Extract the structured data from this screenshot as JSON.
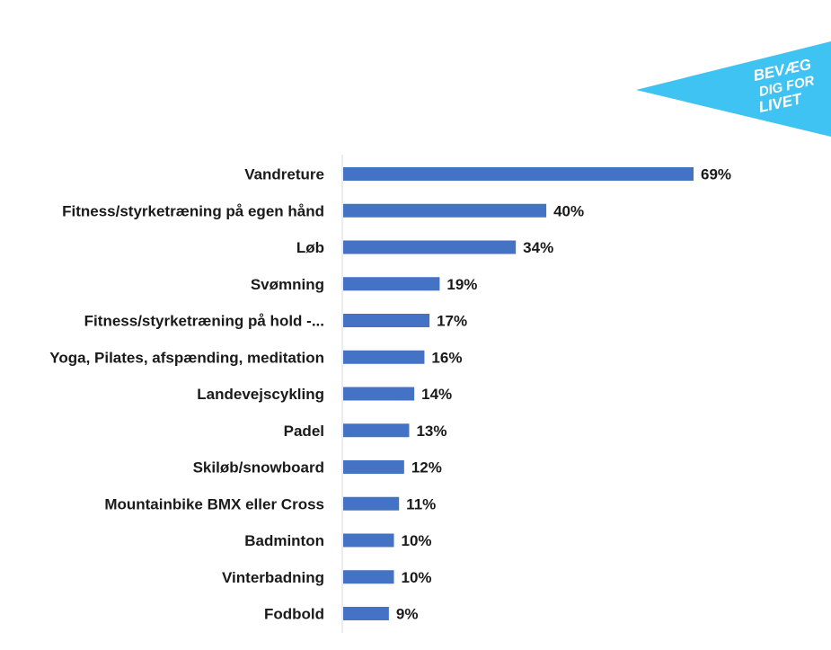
{
  "logo": {
    "lines": [
      "BEVÆG",
      "DIG FOR",
      "LIVET"
    ],
    "color": "#3ec3f2"
  },
  "chart_data": {
    "type": "bar",
    "orientation": "horizontal",
    "categories": [
      "Vandreture",
      "Fitness/styrketræning på egen hånd",
      "Løb",
      "Svømning",
      "Fitness/styrketræning på hold -...",
      "Yoga, Pilates, afspænding, meditation",
      "Landevejscykling",
      "Padel",
      "Skiløb/snowboard",
      "Mountainbike BMX eller Cross",
      "Badminton",
      "Vinterbadning",
      "Fodbold"
    ],
    "values": [
      69,
      40,
      34,
      19,
      17,
      16,
      14,
      13,
      12,
      11,
      10,
      10,
      9
    ],
    "value_labels": [
      "69%",
      "40%",
      "34%",
      "19%",
      "17%",
      "16%",
      "14%",
      "13%",
      "12%",
      "11%",
      "10%",
      "10%",
      "9%"
    ],
    "unit": "%",
    "bar_color": "#4472c4",
    "axis_color": "#d9d9d9",
    "grid": false,
    "legend": "none"
  }
}
